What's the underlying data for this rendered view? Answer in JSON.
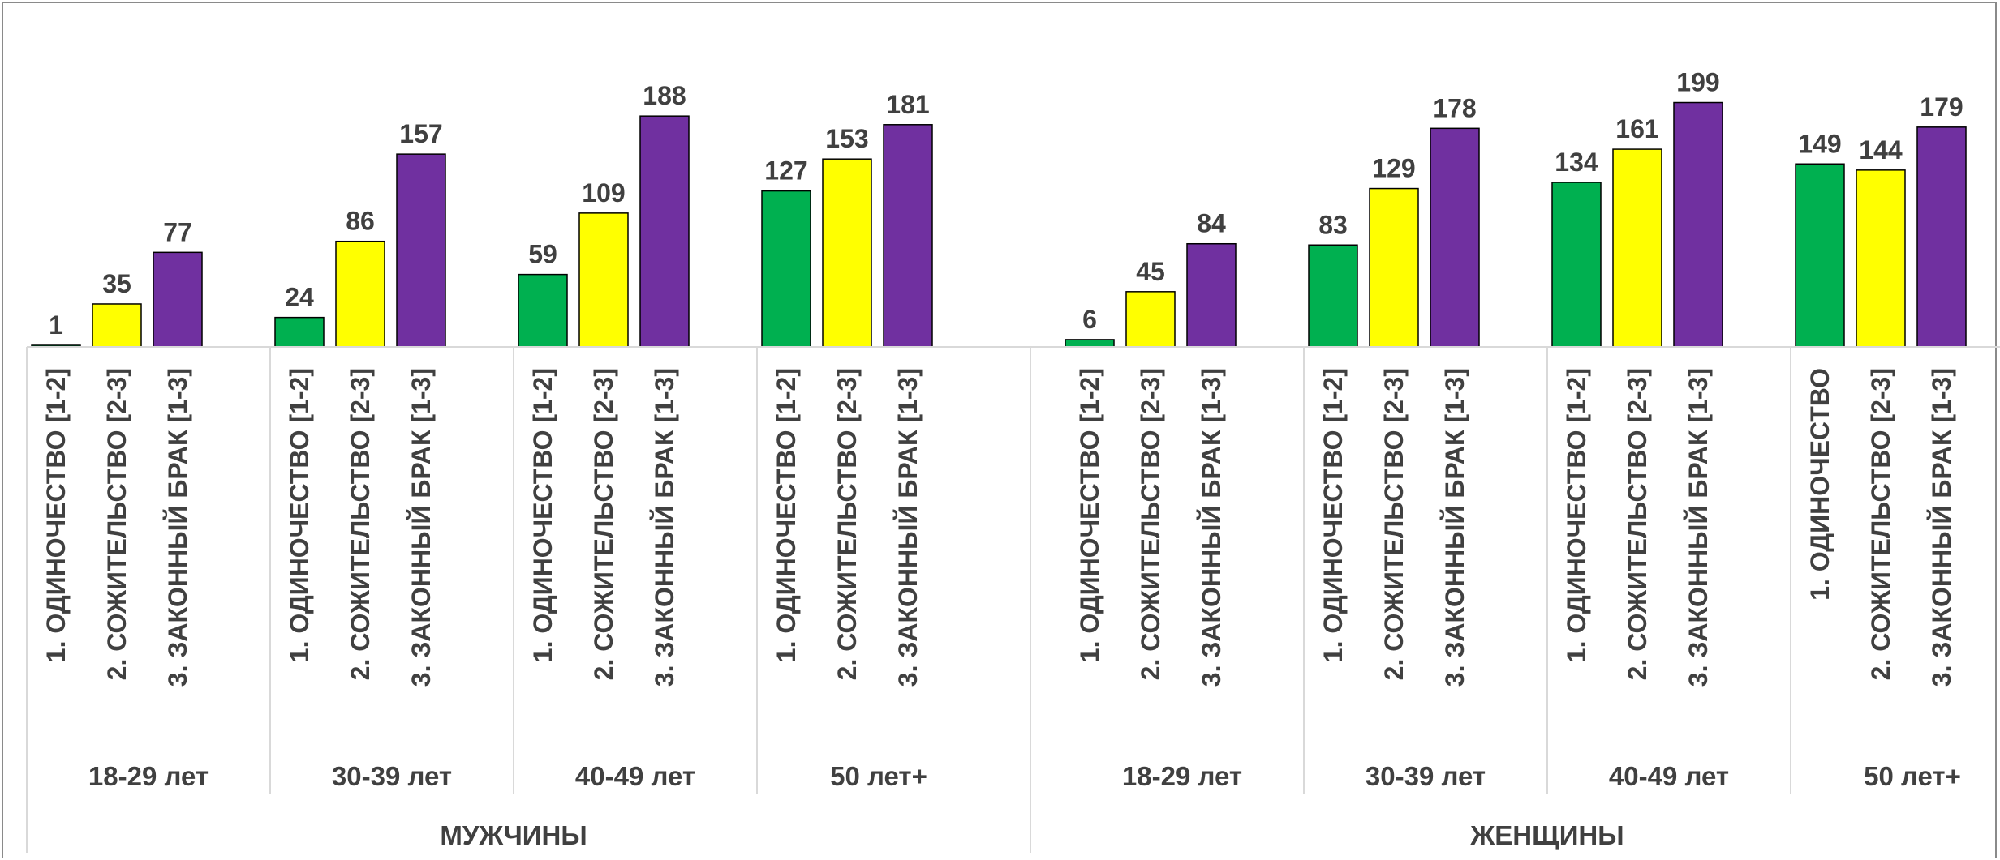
{
  "chart_data": {
    "type": "bar",
    "title": "",
    "xlabel": "",
    "ylabel": "",
    "ylim": [
      0,
      210
    ],
    "grid": false,
    "legend": "none",
    "series_colors": [
      "#00B050",
      "#FFFF00",
      "#7030A0"
    ],
    "genders": [
      {
        "label": "МУЖЧИНЫ",
        "groups": [
          {
            "label": "18-29 лет",
            "bars": [
              {
                "label": "1. ОДИНОЧЕСТВО [1-2]",
                "value": 1
              },
              {
                "label": "2. СОЖИТЕЛЬСТВО [2-3]",
                "value": 35
              },
              {
                "label": "3. ЗАКОННЫЙ БРАК [1-3]",
                "value": 77
              }
            ]
          },
          {
            "label": "30-39 лет",
            "bars": [
              {
                "label": "1. ОДИНОЧЕСТВО [1-2]",
                "value": 24
              },
              {
                "label": "2. СОЖИТЕЛЬСТВО [2-3]",
                "value": 86
              },
              {
                "label": "3. ЗАКОННЫЙ БРАК [1-3]",
                "value": 157
              }
            ]
          },
          {
            "label": "40-49 лет",
            "bars": [
              {
                "label": "1. ОДИНОЧЕСТВО [1-2]",
                "value": 59
              },
              {
                "label": "2. СОЖИТЕЛЬСТВО [2-3]",
                "value": 109
              },
              {
                "label": "3. ЗАКОННЫЙ БРАК [1-3]",
                "value": 188
              }
            ]
          },
          {
            "label": "50 лет+",
            "bars": [
              {
                "label": "1. ОДИНОЧЕСТВО [1-2]",
                "value": 127
              },
              {
                "label": "2. СОЖИТЕЛЬСТВО [2-3]",
                "value": 153
              },
              {
                "label": "3. ЗАКОННЫЙ БРАК [1-3]",
                "value": 181
              }
            ]
          }
        ]
      },
      {
        "label": "ЖЕНЩИНЫ",
        "groups": [
          {
            "label": "18-29 лет",
            "bars": [
              {
                "label": "1. ОДИНОЧЕСТВО [1-2]",
                "value": 6
              },
              {
                "label": "2. СОЖИТЕЛЬСТВО [2-3]",
                "value": 45
              },
              {
                "label": "3. ЗАКОННЫЙ БРАК [1-3]",
                "value": 84
              }
            ]
          },
          {
            "label": "30-39 лет",
            "bars": [
              {
                "label": "1. ОДИНОЧЕСТВО [1-2]",
                "value": 83
              },
              {
                "label": "2. СОЖИТЕЛЬСТВО [2-3]",
                "value": 129
              },
              {
                "label": "3. ЗАКОННЫЙ БРАК [1-3]",
                "value": 178
              }
            ]
          },
          {
            "label": "40-49 лет",
            "bars": [
              {
                "label": "1. ОДИНОЧЕСТВО [1-2]",
                "value": 134
              },
              {
                "label": "2. СОЖИТЕЛЬСТВО [2-3]",
                "value": 161
              },
              {
                "label": "3. ЗАКОННЫЙ БРАК [1-3]",
                "value": 199
              }
            ]
          },
          {
            "label": "50 лет+",
            "bars": [
              {
                "label": "1. ОДИНОЧЕСТВО",
                "value": 149
              },
              {
                "label": "2. СОЖИТЕЛЬСТВО [2-3]",
                "value": 144
              },
              {
                "label": "3. ЗАКОННЫЙ БРАК [1-3]",
                "value": 179
              }
            ]
          }
        ]
      }
    ]
  }
}
